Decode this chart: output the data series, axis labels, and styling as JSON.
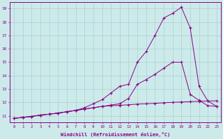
{
  "title": "",
  "xlabel": "Windchill (Refroidissement éolien,°C)",
  "ylabel": "",
  "bg_color": "#cdeaea",
  "grid_color": "#aacfcf",
  "line_color": "#880088",
  "xlim": [
    -0.5,
    23.5
  ],
  "ylim": [
    10.5,
    19.5
  ],
  "yticks": [
    11,
    12,
    13,
    14,
    15,
    16,
    17,
    18,
    19
  ],
  "xticks": [
    0,
    1,
    2,
    3,
    4,
    5,
    6,
    7,
    8,
    9,
    10,
    11,
    12,
    13,
    14,
    15,
    16,
    17,
    18,
    19,
    20,
    21,
    22,
    23
  ],
  "line1_x": [
    0,
    1,
    2,
    3,
    4,
    5,
    6,
    7,
    8,
    9,
    10,
    11,
    12,
    13,
    14,
    15,
    16,
    17,
    18,
    19,
    20,
    21,
    22,
    23
  ],
  "line1_y": [
    10.8,
    10.88,
    10.95,
    11.05,
    11.12,
    11.2,
    11.3,
    11.4,
    11.5,
    11.6,
    11.7,
    11.75,
    11.78,
    11.82,
    11.87,
    11.9,
    11.93,
    11.97,
    12.0,
    12.03,
    12.05,
    12.08,
    12.1,
    12.12
  ],
  "line2_x": [
    0,
    1,
    2,
    3,
    4,
    5,
    6,
    7,
    8,
    9,
    10,
    11,
    12,
    13,
    14,
    15,
    16,
    17,
    18,
    19,
    20,
    21,
    22,
    23
  ],
  "line2_y": [
    10.8,
    10.88,
    10.95,
    11.05,
    11.12,
    11.2,
    11.3,
    11.4,
    11.5,
    11.6,
    11.7,
    11.8,
    11.9,
    12.3,
    13.35,
    13.7,
    14.1,
    14.55,
    15.0,
    15.0,
    12.6,
    12.15,
    11.75,
    11.7
  ],
  "line3_x": [
    0,
    1,
    2,
    3,
    4,
    5,
    6,
    7,
    8,
    9,
    10,
    11,
    12,
    13,
    14,
    15,
    16,
    17,
    18,
    19,
    20,
    21,
    22,
    23
  ],
  "line3_y": [
    10.8,
    10.88,
    10.95,
    11.05,
    11.12,
    11.2,
    11.3,
    11.4,
    11.6,
    11.9,
    12.2,
    12.7,
    13.2,
    13.35,
    15.0,
    15.8,
    17.0,
    18.3,
    18.65,
    19.1,
    17.55,
    13.2,
    12.1,
    11.7
  ]
}
